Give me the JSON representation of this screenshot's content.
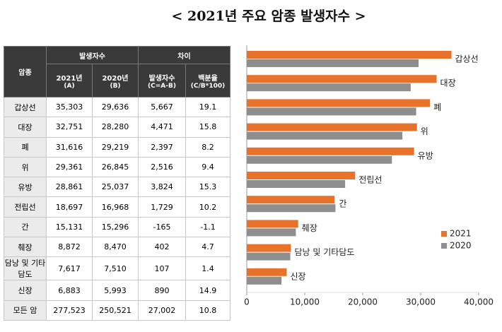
{
  "header": {
    "title": "< 2021년 주요 암종 발생자수 >"
  },
  "table": {
    "header": {
      "category": "암종",
      "count_group": "발생자수",
      "diff_group": "차이",
      "columns": [
        {
          "label": "2021년",
          "note": "(A)"
        },
        {
          "label": "2020년",
          "note": "(B)"
        },
        {
          "label": "발생자수",
          "note": "(C=A-B)"
        },
        {
          "label": "백분율",
          "note": "(C/B*100)"
        }
      ]
    },
    "rows": [
      [
        "갑상선",
        "35,303",
        "29,636",
        "5,667",
        "19.1"
      ],
      [
        "대장",
        "32,751",
        "28,280",
        "4,471",
        "15.8"
      ],
      [
        "폐",
        "31,616",
        "29,219",
        "2,397",
        "8.2"
      ],
      [
        "위",
        "29,361",
        "26,845",
        "2,516",
        "9.4"
      ],
      [
        "유방",
        "28,861",
        "25,037",
        "3,824",
        "15.3"
      ],
      [
        "전립선",
        "18,697",
        "16,968",
        "1,729",
        "10.2"
      ],
      [
        "간",
        "15,131",
        "15,296",
        "-165",
        "-1.1"
      ],
      [
        "췌장",
        "8,872",
        "8,470",
        "402",
        "4.7"
      ],
      [
        "담낭 및 기타담도",
        "7,617",
        "7,510",
        "107",
        "1.4"
      ],
      [
        "신장",
        "6,883",
        "5,993",
        "890",
        "14.9"
      ],
      [
        "모든 암",
        "277,523",
        "250,521",
        "27,002",
        "10.8"
      ]
    ]
  },
  "chart_data": {
    "type": "hbar",
    "categories": [
      "갑상선",
      "대장",
      "폐",
      "위",
      "유방",
      "전립선",
      "간",
      "췌장",
      "담낭 및 기타담도",
      "신장"
    ],
    "series": [
      {
        "name": "2021",
        "color": "#e8722a",
        "values": [
          35303,
          32751,
          31616,
          29361,
          28861,
          18697,
          15131,
          8872,
          7617,
          6883
        ]
      },
      {
        "name": "2020",
        "color": "#8e8e8e",
        "values": [
          29636,
          28280,
          29219,
          26845,
          25037,
          16968,
          15296,
          8470,
          7510,
          5993
        ]
      }
    ],
    "xlim": [
      0,
      40000
    ],
    "xticks": [
      0,
      {
        "value": 10000,
        "label": "10,000"
      },
      {
        "value": 20000,
        "label": "20,000"
      },
      {
        "value": 30000,
        "label": "30,000"
      },
      {
        "value": 40000,
        "label": "40,000"
      }
    ],
    "legend": "right"
  }
}
